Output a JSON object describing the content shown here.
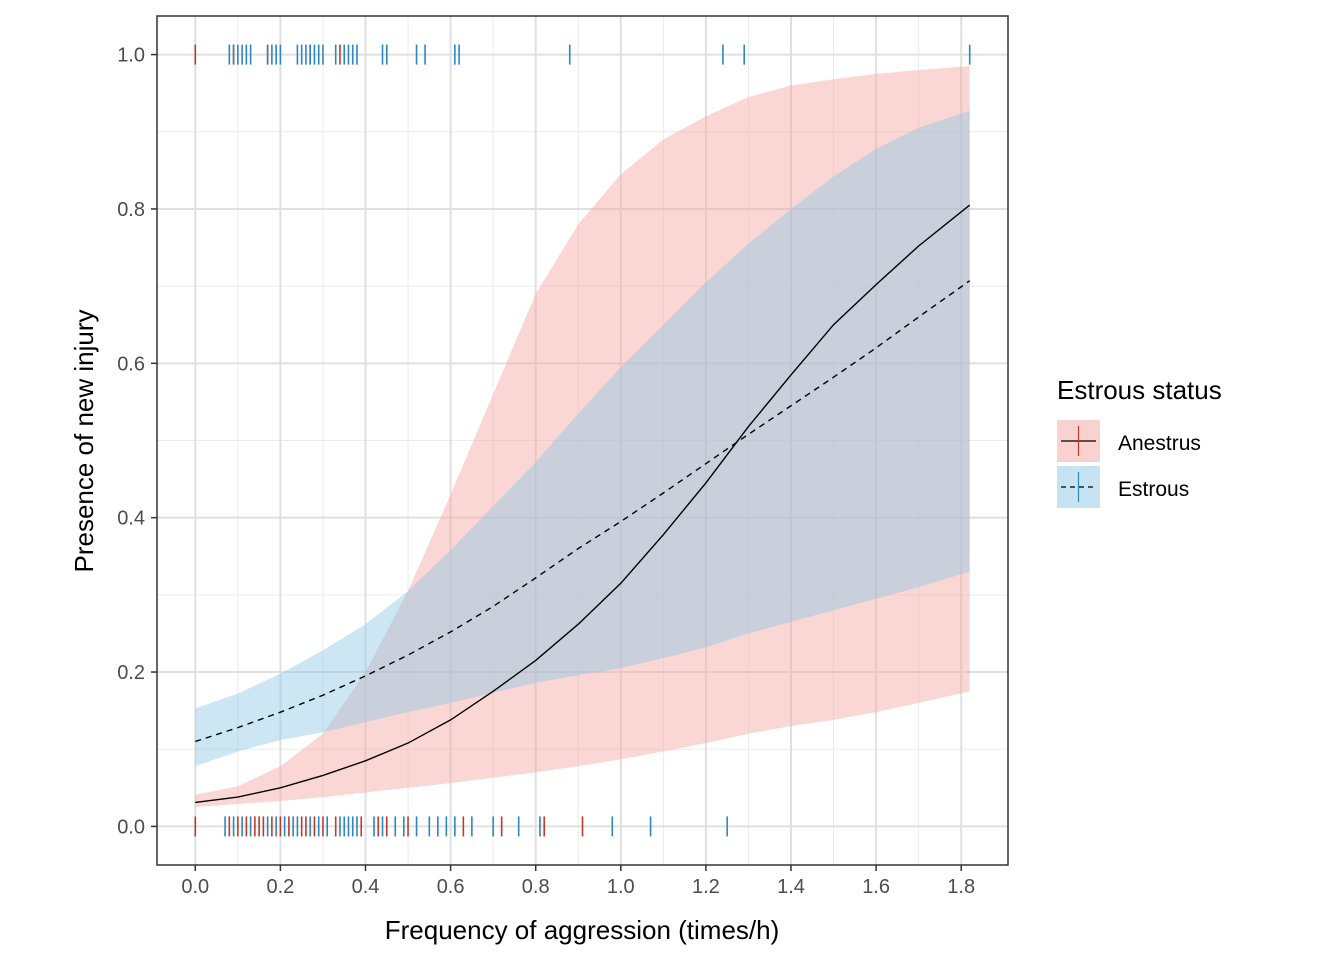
{
  "chart_data": {
    "type": "line",
    "xlabel": "Frequency of aggression (times/h)",
    "ylabel": "Presence of new injury",
    "xlim": [
      -0.09,
      1.91
    ],
    "ylim": [
      -0.05,
      1.05
    ],
    "x_ticks": [
      0.0,
      0.2,
      0.4,
      0.6,
      0.8,
      1.0,
      1.2,
      1.4,
      1.6,
      1.8
    ],
    "x_tick_labels": [
      "0.0",
      "0.2",
      "0.4",
      "0.6",
      "0.8",
      "1.0",
      "1.2",
      "1.4",
      "1.6",
      "1.8"
    ],
    "y_ticks": [
      0.0,
      0.2,
      0.4,
      0.6,
      0.8,
      1.0
    ],
    "y_tick_labels": [
      "0.0",
      "0.2",
      "0.4",
      "0.6",
      "0.8",
      "1.0"
    ],
    "grid": true,
    "legend": {
      "title": "Estrous status",
      "position": "right",
      "entries": [
        "Anestrus",
        "Estrous"
      ]
    },
    "series": [
      {
        "name": "Anestrus",
        "line_style": "solid",
        "line_color": "#000000",
        "ribbon_color": "#f4a6a0",
        "rug_color": "#c0392b",
        "x": [
          0.0,
          0.1,
          0.2,
          0.3,
          0.4,
          0.5,
          0.6,
          0.7,
          0.8,
          0.9,
          1.0,
          1.1,
          1.2,
          1.3,
          1.4,
          1.5,
          1.6,
          1.7,
          1.82
        ],
        "fit": [
          0.031,
          0.038,
          0.05,
          0.066,
          0.085,
          0.108,
          0.138,
          0.175,
          0.215,
          0.262,
          0.315,
          0.378,
          0.445,
          0.518,
          0.585,
          0.65,
          0.702,
          0.752,
          0.805
        ],
        "lower": [
          0.025,
          0.029,
          0.033,
          0.038,
          0.044,
          0.05,
          0.056,
          0.063,
          0.07,
          0.078,
          0.087,
          0.097,
          0.108,
          0.12,
          0.13,
          0.138,
          0.148,
          0.16,
          0.175
        ],
        "upper": [
          0.041,
          0.052,
          0.078,
          0.12,
          0.2,
          0.305,
          0.43,
          0.56,
          0.69,
          0.78,
          0.845,
          0.89,
          0.92,
          0.945,
          0.96,
          0.968,
          0.975,
          0.98,
          0.985
        ]
      },
      {
        "name": "Estrous",
        "line_style": "dashed",
        "line_color": "#000000",
        "ribbon_color": "#8ec7e6",
        "rug_color": "#2e86c1",
        "x": [
          0.0,
          0.1,
          0.2,
          0.3,
          0.4,
          0.5,
          0.6,
          0.7,
          0.8,
          0.9,
          1.0,
          1.1,
          1.2,
          1.3,
          1.4,
          1.5,
          1.6,
          1.7,
          1.82
        ],
        "fit": [
          0.11,
          0.128,
          0.148,
          0.17,
          0.195,
          0.222,
          0.252,
          0.285,
          0.322,
          0.36,
          0.395,
          0.432,
          0.47,
          0.508,
          0.545,
          0.582,
          0.62,
          0.66,
          0.707
        ],
        "lower": [
          0.078,
          0.097,
          0.112,
          0.122,
          0.135,
          0.148,
          0.16,
          0.173,
          0.186,
          0.196,
          0.205,
          0.218,
          0.232,
          0.25,
          0.265,
          0.28,
          0.295,
          0.31,
          0.33
        ],
        "upper": [
          0.153,
          0.172,
          0.198,
          0.228,
          0.262,
          0.305,
          0.358,
          0.415,
          0.472,
          0.535,
          0.595,
          0.65,
          0.705,
          0.755,
          0.8,
          0.842,
          0.878,
          0.905,
          0.927
        ]
      }
    ],
    "rug": {
      "y1": {
        "Anestrus": [
          0.0,
          0.09,
          0.17,
          0.27,
          0.34
        ],
        "Estrous": [
          0.08,
          0.09,
          0.1,
          0.11,
          0.12,
          0.13,
          0.17,
          0.18,
          0.19,
          0.2,
          0.24,
          0.25,
          0.26,
          0.27,
          0.28,
          0.29,
          0.3,
          0.33,
          0.35,
          0.36,
          0.37,
          0.38,
          0.44,
          0.45,
          0.52,
          0.54,
          0.61,
          0.62,
          0.88,
          1.24,
          1.29,
          1.82
        ]
      },
      "y0": {
        "Anestrus": [
          0.0,
          0.08,
          0.1,
          0.12,
          0.14,
          0.15,
          0.16,
          0.18,
          0.2,
          0.22,
          0.25,
          0.26,
          0.28,
          0.3,
          0.33,
          0.39,
          0.43,
          0.45,
          0.5,
          0.63,
          0.72,
          0.82,
          0.91
        ],
        "Estrous": [
          0.07,
          0.09,
          0.11,
          0.13,
          0.17,
          0.19,
          0.21,
          0.23,
          0.24,
          0.27,
          0.29,
          0.31,
          0.34,
          0.35,
          0.36,
          0.37,
          0.38,
          0.42,
          0.44,
          0.47,
          0.49,
          0.52,
          0.55,
          0.57,
          0.59,
          0.61,
          0.65,
          0.7,
          0.76,
          0.81,
          0.98,
          1.07,
          1.25
        ]
      }
    }
  }
}
